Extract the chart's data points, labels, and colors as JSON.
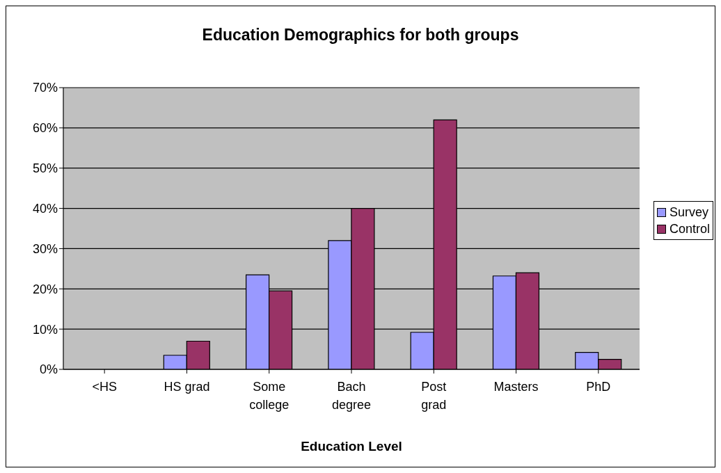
{
  "chart_data": {
    "type": "bar",
    "title": "Education Demographics for both groups",
    "xlabel": "Education Level",
    "categories": [
      "<HS",
      "HS grad",
      "Some college",
      "Bach degree",
      "Post grad",
      "Masters",
      "PhD"
    ],
    "series": [
      {
        "name": "Survey",
        "color": "#9999ff",
        "values": [
          0,
          3.5,
          23.5,
          32,
          9.2,
          23.2,
          4.2
        ]
      },
      {
        "name": "Control",
        "color": "#993366",
        "values": [
          0,
          7,
          19.5,
          40,
          62,
          24,
          2.5
        ]
      }
    ],
    "ylim": [
      0,
      70
    ],
    "yticks": [
      {
        "value": 0,
        "label": "0%"
      },
      {
        "value": 10,
        "label": "10%"
      },
      {
        "value": 20,
        "label": "20%"
      },
      {
        "value": 30,
        "label": "30%"
      },
      {
        "value": 40,
        "label": "40%"
      },
      {
        "value": 50,
        "label": "50%"
      },
      {
        "value": 60,
        "label": "60%"
      },
      {
        "value": 70,
        "label": "70%"
      }
    ],
    "grid": "y",
    "legend": "right"
  }
}
